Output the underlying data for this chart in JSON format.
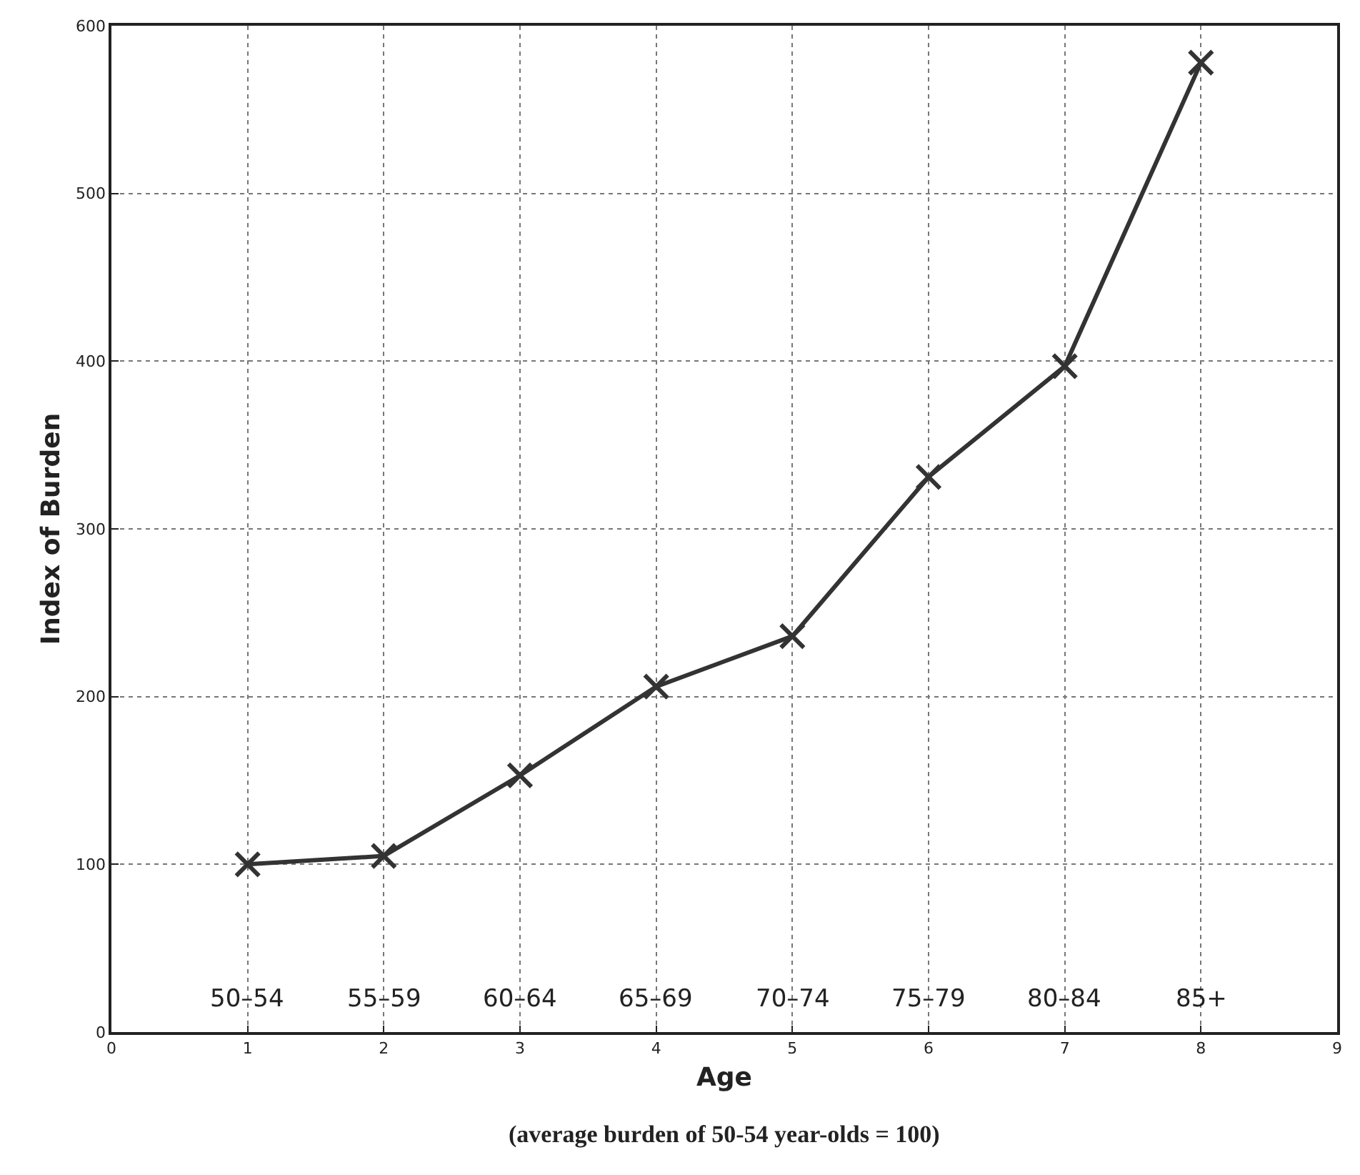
{
  "chart_data": {
    "type": "line",
    "x": [
      1,
      2,
      3,
      4,
      5,
      6,
      7,
      8
    ],
    "series": [
      {
        "color": "#333333",
        "values": [
          100,
          105,
          153,
          206,
          236,
          331,
          397,
          578
        ]
      }
    ],
    "xlabel": "Age",
    "ylabel": "Index of Burden",
    "xlim": [
      0,
      9
    ],
    "xticks": [
      0,
      1,
      2,
      3,
      4,
      5,
      6,
      7,
      8,
      9
    ],
    "ylim": [
      0,
      600
    ],
    "yticks": [
      0,
      100,
      200,
      300,
      400,
      500,
      600
    ],
    "grid": true,
    "marker": "cross",
    "line_style": "solid",
    "annotations": [
      "50–54",
      "55–59",
      "60–64",
      "65–69",
      "70–74",
      "75–79",
      "80–84",
      "85+",
      "(average burden of 50-54 year-olds = 100)"
    ]
  }
}
